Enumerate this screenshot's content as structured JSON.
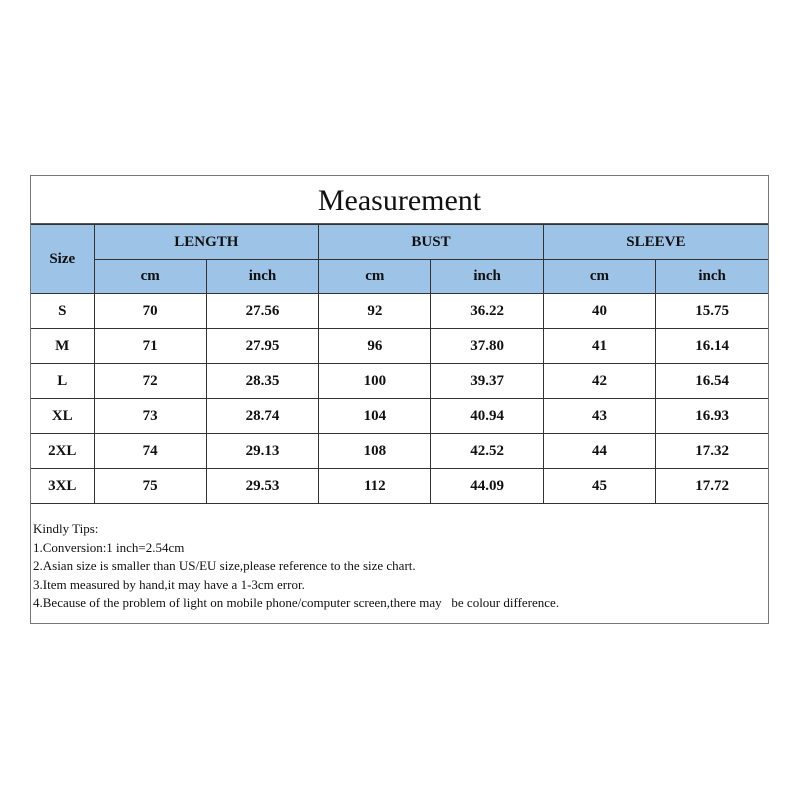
{
  "title": "Measurement",
  "header": {
    "size": "Size",
    "groups": [
      "LENGTH",
      "BUST",
      "SLEEVE"
    ],
    "units": [
      "cm",
      "inch",
      "cm",
      "inch",
      "cm",
      "inch"
    ]
  },
  "header_color": "#9dc3e6",
  "rows": [
    [
      "S",
      "70",
      "27.56",
      "92",
      "36.22",
      "40",
      "15.75"
    ],
    [
      "M",
      "71",
      "27.95",
      "96",
      "37.80",
      "41",
      "16.14"
    ],
    [
      "L",
      "72",
      "28.35",
      "100",
      "39.37",
      "42",
      "16.54"
    ],
    [
      "XL",
      "73",
      "28.74",
      "104",
      "40.94",
      "43",
      "16.93"
    ],
    [
      "2XL",
      "74",
      "29.13",
      "108",
      "42.52",
      "44",
      "17.32"
    ],
    [
      "3XL",
      "75",
      "29.53",
      "112",
      "44.09",
      "45",
      "17.72"
    ]
  ],
  "tips": [
    "Kindly Tips:",
    "1.Conversion:1 inch=2.54cm",
    "2.Asian size is smaller than US/EU size,please reference to the size chart.",
    "3.Item measured by hand,it may have a 1-3cm error.",
    "4.Because of the problem of light on mobile phone/computer screen,there may   be colour difference."
  ]
}
